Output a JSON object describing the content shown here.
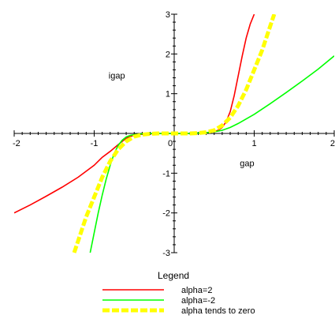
{
  "chart_data": {
    "type": "line",
    "xlabel": "gap",
    "ylabel": "igap",
    "xlim": [
      -2,
      2
    ],
    "ylim": [
      -3,
      3
    ],
    "x_ticks": [
      -2,
      -1,
      0,
      1,
      2
    ],
    "y_ticks": [
      -3,
      -2,
      -1,
      0,
      1,
      2,
      3
    ],
    "x_tick_labels": [
      "-2",
      "-1",
      "0",
      "1",
      "2"
    ],
    "y_tick_labels": [
      "-3",
      "-2",
      "-1",
      "0",
      "1",
      "2",
      "3"
    ],
    "grid": false,
    "legend_title": "Legend",
    "legend_position": "bottom",
    "series": [
      {
        "name": "alpha=2",
        "color": "#ff0000",
        "dash": "solid",
        "x": [
          -2.0,
          -1.8,
          -1.6,
          -1.4,
          -1.2,
          -1.0,
          -0.9,
          -0.8,
          -0.7,
          -0.6,
          -0.5,
          -0.4,
          -0.3,
          -0.2,
          -0.1,
          0.0,
          0.1,
          0.2,
          0.3,
          0.4,
          0.5,
          0.55,
          0.6,
          0.65,
          0.7,
          0.75,
          0.8,
          0.85,
          0.9,
          0.95,
          1.0
        ],
        "y": [
          -2.0,
          -1.8,
          -1.58,
          -1.35,
          -1.1,
          -0.8,
          -0.6,
          -0.45,
          -0.28,
          -0.12,
          -0.04,
          -0.02,
          -0.01,
          0.0,
          0.0,
          0.0,
          0.0,
          0.0,
          0.01,
          0.02,
          0.05,
          0.08,
          0.15,
          0.3,
          0.55,
          0.95,
          1.45,
          1.95,
          2.4,
          2.75,
          3.0
        ]
      },
      {
        "name": "alpha=-2",
        "color": "#00ff00",
        "dash": "solid",
        "x": [
          -1.05,
          -1.0,
          -0.95,
          -0.9,
          -0.85,
          -0.8,
          -0.75,
          -0.7,
          -0.65,
          -0.6,
          -0.55,
          -0.5,
          -0.45,
          -0.4,
          -0.3,
          -0.2,
          -0.1,
          0.0,
          0.1,
          0.2,
          0.3,
          0.4,
          0.5,
          0.6,
          0.7,
          0.8,
          1.0,
          1.2,
          1.4,
          1.6,
          1.8,
          2.0
        ],
        "y": [
          -3.0,
          -2.5,
          -2.0,
          -1.55,
          -1.15,
          -0.8,
          -0.5,
          -0.3,
          -0.17,
          -0.09,
          -0.05,
          -0.03,
          -0.02,
          -0.01,
          0.0,
          0.0,
          0.0,
          0.0,
          0.0,
          0.0,
          0.01,
          0.02,
          0.04,
          0.08,
          0.15,
          0.25,
          0.48,
          0.75,
          1.03,
          1.32,
          1.62,
          1.95
        ]
      },
      {
        "name": "alpha tends to zero",
        "color": "#ffff00",
        "dash": "dashed",
        "x": [
          -1.25,
          -1.2,
          -1.1,
          -1.0,
          -0.9,
          -0.8,
          -0.7,
          -0.6,
          -0.5,
          -0.4,
          -0.3,
          -0.2,
          -0.1,
          0.0,
          0.1,
          0.2,
          0.3,
          0.4,
          0.5,
          0.6,
          0.7,
          0.8,
          0.9,
          1.0,
          1.1,
          1.2,
          1.25
        ],
        "y": [
          -3.0,
          -2.7,
          -2.1,
          -1.6,
          -1.1,
          -0.7,
          -0.4,
          -0.2,
          -0.08,
          -0.03,
          -0.01,
          0.0,
          0.0,
          0.0,
          0.0,
          0.0,
          0.01,
          0.03,
          0.08,
          0.2,
          0.4,
          0.7,
          1.1,
          1.6,
          2.1,
          2.7,
          3.0
        ]
      }
    ]
  }
}
